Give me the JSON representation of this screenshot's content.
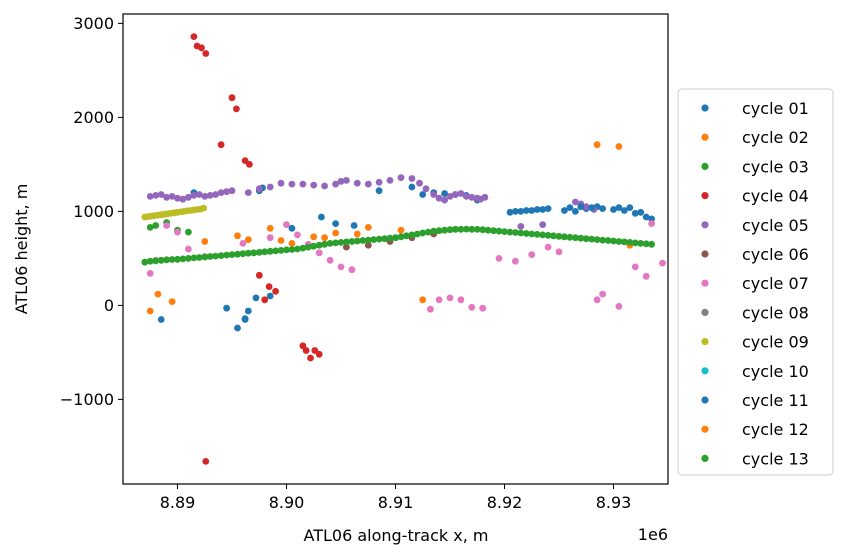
{
  "chart_data": {
    "type": "scatter",
    "xlabel": "ATL06 along-track x, m",
    "ylabel": "ATL06 height, m",
    "x_offset_label": "1e6",
    "x_scale": 1000000,
    "xlim": [
      8.885,
      8.935
    ],
    "ylim": [
      -1900,
      3100
    ],
    "x_ticks": [
      8.89,
      8.9,
      8.91,
      8.92,
      8.93
    ],
    "x_tick_labels": [
      "8.89",
      "8.90",
      "8.91",
      "8.92",
      "8.93"
    ],
    "y_ticks": [
      -1000,
      0,
      1000,
      2000,
      3000
    ],
    "y_tick_labels": [
      "−1000",
      "0",
      "1000",
      "2000",
      "3000"
    ],
    "grid": false,
    "legend_position": "center-right outside",
    "series": [
      {
        "name": "cycle 01",
        "color": "#1f77b4",
        "x": [
          8.8915,
          8.8945,
          8.8955,
          8.8962,
          8.8975,
          8.8978,
          8.8985,
          8.8965,
          8.9005,
          8.9032,
          8.9045,
          8.9062,
          8.9085,
          8.9115,
          8.9125,
          8.9135,
          8.9145,
          8.9155,
          8.9165,
          8.9175,
          8.9205,
          8.9215,
          8.9225,
          8.9235,
          8.9255,
          8.9265,
          8.9275,
          8.9285,
          8.9305,
          8.9315,
          8.9325,
          8.9335,
          8.8885,
          8.8962,
          8.8972
        ],
        "y": [
          1200,
          -30,
          -240,
          -150,
          1220,
          1250,
          100,
          -60,
          820,
          940,
          870,
          850,
          1220,
          1260,
          1180,
          1200,
          1190,
          1180,
          1170,
          1120,
          990,
          1000,
          1010,
          1020,
          1010,
          1000,
          1030,
          1050,
          1040,
          1040,
          990,
          920,
          -150,
          -140,
          80
        ]
      },
      {
        "name": "cycle 02",
        "color": "#ff7f0e",
        "x": [
          8.8875,
          8.8882,
          8.8895,
          8.8925,
          8.8955,
          8.8985,
          8.9005,
          8.9025,
          8.9045,
          8.9075,
          8.9125,
          8.9285,
          8.9305,
          8.9315
        ],
        "y": [
          -60,
          120,
          40,
          680,
          740,
          820,
          660,
          730,
          770,
          830,
          60,
          1710,
          1690,
          640
        ]
      },
      {
        "name": "cycle 03",
        "color": "#2ca02c",
        "x": [
          8.8875,
          8.888,
          8.889,
          8.89,
          8.891
        ],
        "y": [
          830,
          850,
          880,
          800,
          780
        ]
      },
      {
        "name": "cycle 04",
        "color": "#d62728",
        "x": [
          8.8915,
          8.8918,
          8.8922,
          8.8926,
          8.895,
          8.8954,
          8.8962,
          8.8966,
          8.894,
          8.8975,
          8.898,
          8.8984,
          8.899,
          8.9015,
          8.9018,
          8.9022,
          8.9026,
          8.903,
          8.8926
        ],
        "y": [
          2860,
          2760,
          2740,
          2680,
          2210,
          2090,
          1540,
          1500,
          1710,
          320,
          60,
          200,
          150,
          -430,
          -480,
          -560,
          -480,
          -520,
          -1660
        ]
      },
      {
        "name": "cycle 05",
        "color": "#9467bd",
        "x": [
          8.8875,
          8.888,
          8.8885,
          8.889,
          8.8895,
          8.89,
          8.8905,
          8.891,
          8.8915,
          8.892,
          8.8925,
          8.893,
          8.8935,
          8.894,
          8.8945,
          8.895,
          8.8965,
          8.8975,
          8.8985,
          8.8995,
          8.9005,
          8.9015,
          8.9025,
          8.9035,
          8.9045,
          8.905,
          8.9055,
          8.9065,
          8.9075,
          8.9085,
          8.9095,
          8.9105,
          8.9115,
          8.9122,
          8.9128,
          8.9135,
          8.914,
          8.9145,
          8.915,
          8.9155,
          8.916,
          8.9165,
          8.917,
          8.9175,
          8.9178,
          8.9182,
          8.9215,
          8.9235,
          8.9265,
          8.927,
          8.9275,
          8.9282
        ],
        "y": [
          1160,
          1170,
          1180,
          1150,
          1160,
          1140,
          1130,
          1150,
          1170,
          1180,
          1160,
          1170,
          1180,
          1200,
          1210,
          1220,
          1200,
          1240,
          1260,
          1300,
          1290,
          1290,
          1280,
          1270,
          1290,
          1320,
          1330,
          1300,
          1290,
          1310,
          1330,
          1360,
          1350,
          1300,
          1240,
          1180,
          1140,
          1120,
          1160,
          1180,
          1190,
          1160,
          1150,
          1140,
          1130,
          1150,
          840,
          860,
          1100,
          1080,
          1050,
          1020
        ]
      },
      {
        "name": "cycle 06",
        "color": "#8c564b",
        "x": [
          8.9055,
          8.9075,
          8.9095,
          8.9115,
          8.9135
        ],
        "y": [
          620,
          640,
          680,
          720,
          760
        ]
      },
      {
        "name": "cycle 07",
        "color": "#e377c2",
        "x": [
          8.8875,
          8.888,
          8.889,
          8.89,
          8.891,
          8.8925,
          8.896,
          8.8985,
          8.9,
          8.901,
          8.902,
          8.903,
          8.904,
          8.905,
          8.906,
          8.9132,
          8.914,
          8.915,
          8.916,
          8.917,
          8.918,
          8.9195,
          8.921,
          8.9225,
          8.924,
          8.925,
          8.9285,
          8.929,
          8.9305,
          8.932,
          8.933,
          8.9335,
          8.9345
        ],
        "y": [
          340,
          480,
          850,
          780,
          600,
          520,
          660,
          720,
          860,
          750,
          650,
          560,
          480,
          410,
          380,
          -40,
          60,
          80,
          60,
          -20,
          -30,
          500,
          470,
          540,
          620,
          570,
          60,
          120,
          -10,
          410,
          310,
          870,
          450
        ]
      },
      {
        "name": "cycle 08",
        "color": "#7f7f7f",
        "x": [],
        "y": []
      },
      {
        "name": "cycle 09",
        "color": "#bcbd22",
        "x": [
          8.887,
          8.8873,
          8.8876,
          8.8879,
          8.8882,
          8.8885,
          8.8888,
          8.8891,
          8.8894,
          8.8897,
          8.89,
          8.8903,
          8.8906,
          8.8909,
          8.8912,
          8.8915,
          8.8918,
          8.8921,
          8.8924
        ],
        "y": [
          940,
          945,
          950,
          955,
          960,
          965,
          970,
          975,
          980,
          985,
          990,
          995,
          1000,
          1005,
          1010,
          1015,
          1020,
          1025,
          1035
        ]
      },
      {
        "name": "cycle 10",
        "color": "#17becf",
        "x": [],
        "y": []
      },
      {
        "name": "cycle 11",
        "color": "#1f77b4",
        "x": [
          8.921,
          8.922,
          8.923,
          8.924,
          8.926,
          8.927,
          8.928,
          8.929,
          8.93,
          8.931,
          8.932,
          8.933
        ],
        "y": [
          1000,
          1010,
          1020,
          1030,
          1040,
          1050,
          1040,
          1030,
          1020,
          1010,
          980,
          940
        ]
      },
      {
        "name": "cycle 12",
        "color": "#ff7f0e",
        "x": [
          8.8965,
          8.8995,
          8.9035,
          8.9065,
          8.9105
        ],
        "y": [
          700,
          690,
          720,
          760,
          800
        ]
      },
      {
        "name": "cycle 13",
        "color": "#2ca02c",
        "x": [
          8.887,
          8.8875,
          8.888,
          8.8885,
          8.889,
          8.8895,
          8.89,
          8.8905,
          8.891,
          8.8915,
          8.892,
          8.8925,
          8.893,
          8.8935,
          8.894,
          8.8945,
          8.895,
          8.8955,
          8.896,
          8.8965,
          8.897,
          8.8975,
          8.898,
          8.8985,
          8.899,
          8.8995,
          8.9,
          8.9005,
          8.901,
          8.9015,
          8.902,
          8.9025,
          8.903,
          8.9035,
          8.904,
          8.9045,
          8.905,
          8.9055,
          8.906,
          8.9065,
          8.907,
          8.9075,
          8.908,
          8.9085,
          8.909,
          8.9095,
          8.91,
          8.9105,
          8.911,
          8.9115,
          8.912,
          8.9125,
          8.913,
          8.9135,
          8.914,
          8.9145,
          8.915,
          8.9155,
          8.916,
          8.9165,
          8.917,
          8.9175,
          8.918,
          8.9185,
          8.919,
          8.9195,
          8.92,
          8.9205,
          8.921,
          8.9215,
          8.922,
          8.9225,
          8.923,
          8.9235,
          8.924,
          8.9245,
          8.925,
          8.9255,
          8.926,
          8.9265,
          8.927,
          8.9275,
          8.928,
          8.9285,
          8.929,
          8.9295,
          8.93,
          8.9305,
          8.931,
          8.9315,
          8.932,
          8.9325,
          8.933,
          8.9335
        ],
        "y": [
          460,
          470,
          475,
          480,
          485,
          488,
          490,
          495,
          500,
          505,
          510,
          515,
          520,
          525,
          530,
          535,
          540,
          545,
          550,
          555,
          560,
          565,
          570,
          575,
          580,
          585,
          590,
          595,
          600,
          610,
          620,
          630,
          640,
          650,
          660,
          665,
          670,
          675,
          680,
          685,
          690,
          695,
          700,
          705,
          710,
          715,
          720,
          730,
          740,
          750,
          760,
          770,
          780,
          790,
          795,
          800,
          805,
          810,
          810,
          812,
          810,
          808,
          805,
          800,
          795,
          790,
          785,
          780,
          775,
          770,
          765,
          760,
          755,
          750,
          745,
          740,
          735,
          730,
          725,
          720,
          715,
          710,
          705,
          700,
          695,
          690,
          685,
          680,
          675,
          670,
          665,
          660,
          655,
          650
        ]
      }
    ]
  }
}
